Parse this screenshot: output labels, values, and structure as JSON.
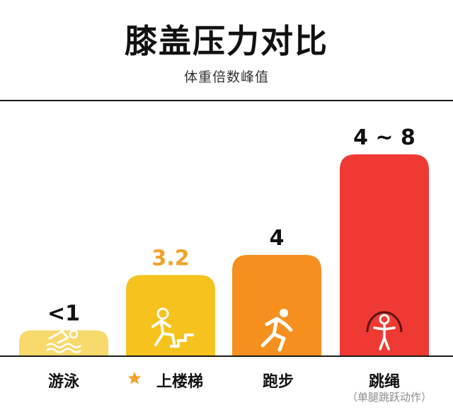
{
  "title": "膝盖压力对比",
  "subtitle": "体重倍数峰值",
  "chart_data": {
    "type": "bar",
    "categories": [
      "游泳",
      "上楼梯",
      "跑步",
      "跳绳"
    ],
    "values": [
      1,
      3.2,
      4,
      8
    ],
    "value_labels": [
      "<1",
      "3.2",
      "4",
      "4 ~ 8"
    ],
    "ranges": [
      null,
      null,
      null,
      [
        4,
        8
      ]
    ],
    "ylim": [
      0,
      8
    ],
    "grid": false,
    "legend": "none",
    "colors": [
      "#F8D96B",
      "#F6C31E",
      "#F5901F",
      "#EF3A34"
    ],
    "label_colors": [
      "#111111",
      "#F0A32A",
      "#111111",
      "#111111"
    ],
    "icons": [
      "swimmer-icon",
      "climbing-stairs-icon",
      "runner-icon",
      "jump-rope-icon"
    ],
    "highlight_category": "上楼梯",
    "highlight_icon": "star-icon",
    "highlight_color": "#F0A32A",
    "notes": [
      null,
      null,
      null,
      "（单腿跳跃动作）"
    ]
  }
}
